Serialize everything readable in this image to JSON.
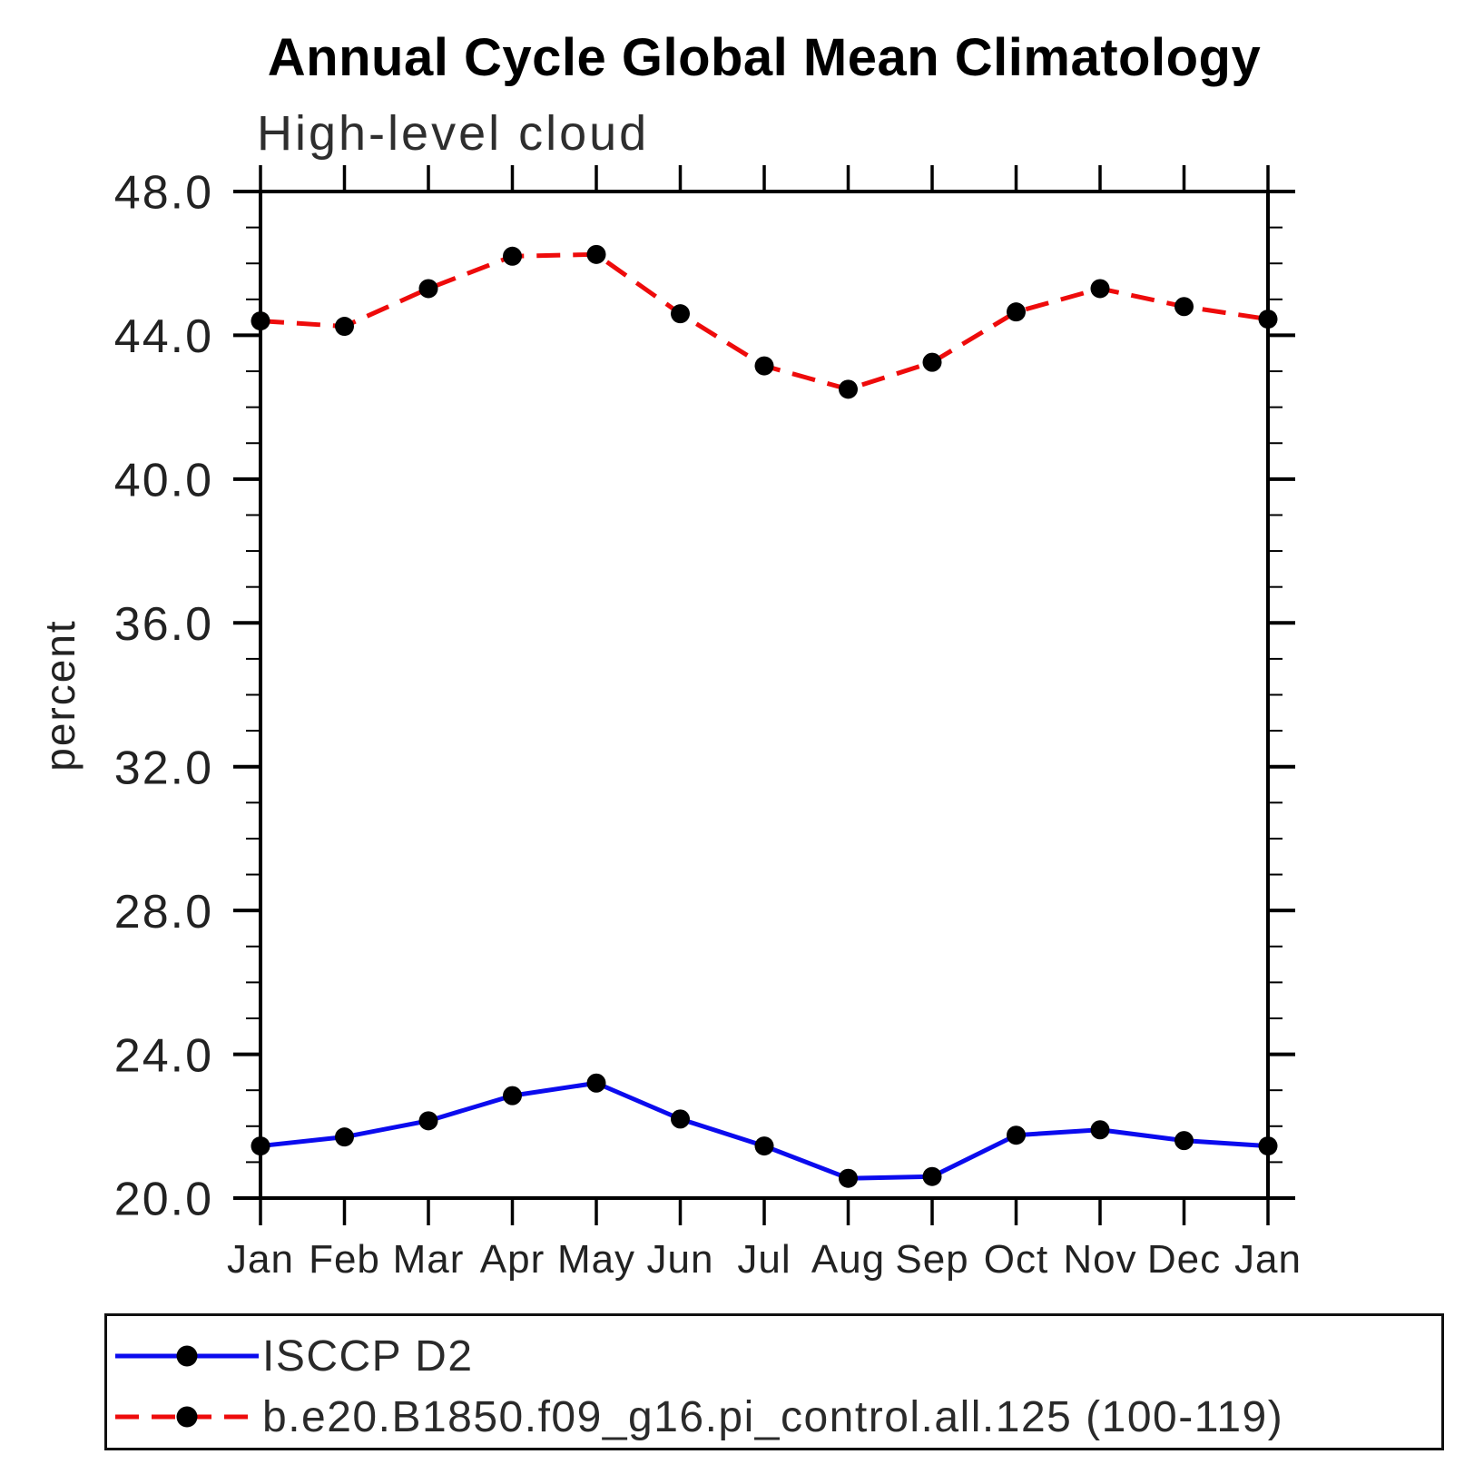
{
  "page": {
    "title": "Annual Cycle Global Mean Climatology",
    "subtitle": "High-level cloud"
  },
  "legend": {
    "entries": [
      {
        "label": "ISCCP D2",
        "color": "#0b0bee",
        "line_style": "solid",
        "marker": "filled-circle",
        "marker_color": "#000000"
      },
      {
        "label": "b.e20.B1850.f09_g16.pi_control.all.125 (100-119)",
        "color": "#ee0b0b",
        "line_style": "dashed",
        "marker": "filled-circle",
        "marker_color": "#000000"
      }
    ]
  },
  "chart_data": {
    "type": "line",
    "title": "Annual Cycle Global Mean Climatology",
    "subtitle": "High-level cloud",
    "ylabel": "percent",
    "x_categories": [
      "Jan",
      "Feb",
      "Mar",
      "Apr",
      "May",
      "Jun",
      "Jul",
      "Aug",
      "Sep",
      "Oct",
      "Nov",
      "Dec",
      "Jan"
    ],
    "ylim": [
      20.0,
      48.0
    ],
    "ytick_major_step": 4.0,
    "ytick_minor_step": 1.0,
    "ytick_labels": [
      "48.0",
      "44.0",
      "40.0",
      "36.0",
      "32.0",
      "28.0",
      "24.0",
      "20.0"
    ],
    "grid": false,
    "legend_position": "bottom",
    "series": [
      {
        "name": "ISCCP D2",
        "color": "#0b0bee",
        "line_style": "solid",
        "marker": "filled-circle",
        "marker_color": "#000000",
        "values": [
          21.45,
          21.7,
          22.15,
          22.85,
          23.2,
          22.2,
          21.45,
          20.55,
          20.6,
          21.75,
          21.9,
          21.6,
          21.45
        ]
      },
      {
        "name": "b.e20.B1850.f09_g16.pi_control.all.125 (100-119)",
        "color": "#ee0b0b",
        "line_style": "dashed",
        "marker": "filled-circle",
        "marker_color": "#000000",
        "values": [
          44.4,
          44.25,
          45.3,
          46.2,
          46.25,
          44.6,
          43.15,
          42.5,
          43.25,
          44.65,
          45.3,
          44.8,
          44.45
        ]
      }
    ]
  }
}
